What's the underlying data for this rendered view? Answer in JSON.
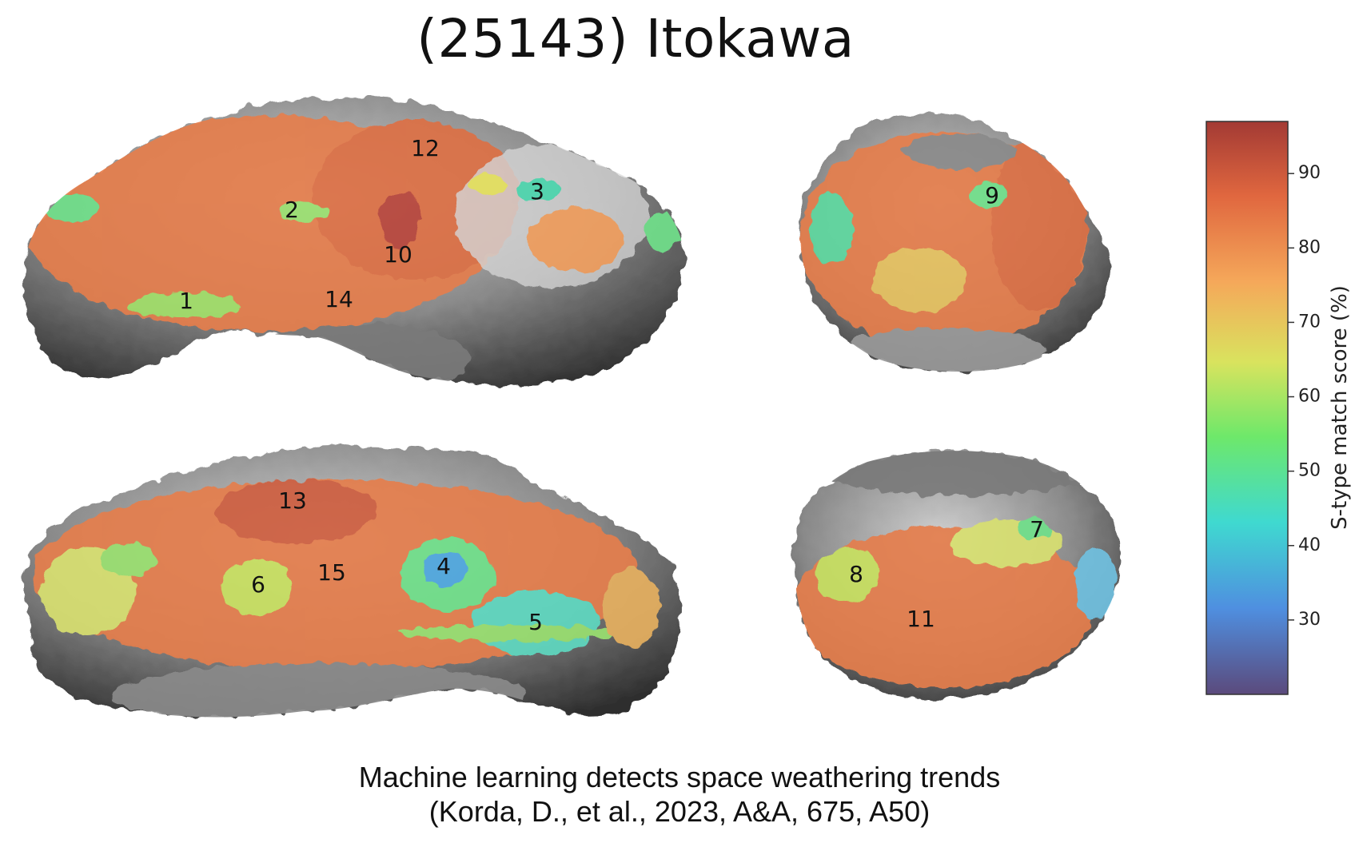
{
  "title": "(25143) Itokawa",
  "views": [
    {
      "id": "top-left",
      "labels": [
        "1",
        "2",
        "3",
        "10",
        "12",
        "14"
      ]
    },
    {
      "id": "top-right",
      "labels": [
        "9"
      ]
    },
    {
      "id": "bottom-left",
      "labels": [
        "4",
        "5",
        "6",
        "13",
        "15"
      ]
    },
    {
      "id": "bottom-right",
      "labels": [
        "7",
        "8",
        "11"
      ]
    }
  ],
  "colorbar": {
    "label": "S-type match score (%)",
    "min": 20,
    "max": 97,
    "ticks": [
      "30",
      "40",
      "50",
      "60",
      "70",
      "80",
      "90"
    ],
    "colors": [
      "#5b4a7c",
      "#4f8fe0",
      "#3fd9d0",
      "#6ee86a",
      "#d9e35e",
      "#f5a85a",
      "#e0673f",
      "#a33a34"
    ]
  },
  "caption": {
    "line1": "Machine learning detects space weathering trends",
    "line2": "(Korda, D., et al., 2023, A&A, 675, A50)"
  }
}
